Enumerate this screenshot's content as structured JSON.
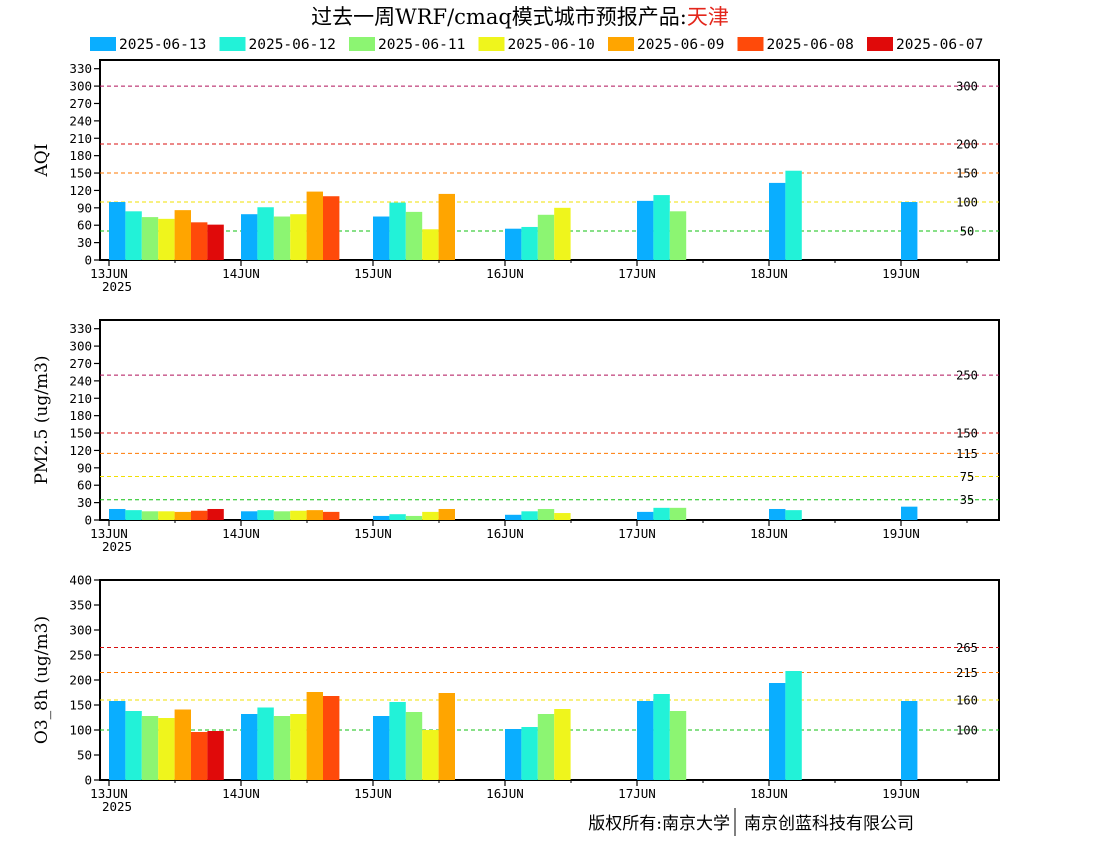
{
  "title": {
    "prefix": "过去一周WRF/cmaq模式城市预报产品:",
    "city": "天津",
    "prefix_color": "#000000",
    "city_color": "#e3261b"
  },
  "legend": {
    "placement": "top",
    "items": [
      {
        "label": "2025-06-13",
        "color": "#0aaeff"
      },
      {
        "label": "2025-06-12",
        "color": "#22f2d8"
      },
      {
        "label": "2025-06-11",
        "color": "#8cf572"
      },
      {
        "label": "2025-06-10",
        "color": "#eff51c"
      },
      {
        "label": "2025-06-09",
        "color": "#ffa500"
      },
      {
        "label": "2025-06-08",
        "color": "#ff4a0a"
      },
      {
        "label": "2025-06-07",
        "color": "#e00a0a"
      }
    ]
  },
  "footer": {
    "left": "版权所有:南京大学",
    "right": "南京创蓝科技有限公司"
  },
  "chart_data": [
    {
      "type": "bar",
      "ylabel": "AQI",
      "ylim": [
        0,
        345
      ],
      "yticks": [
        0,
        30,
        60,
        90,
        120,
        150,
        180,
        210,
        240,
        270,
        300,
        330
      ],
      "x_day_labels": [
        "13JUN",
        "14JUN",
        "15JUN",
        "16JUN",
        "17JUN",
        "18JUN",
        "19JUN"
      ],
      "x_year_label": "2025",
      "grid": false,
      "thresholds": [
        {
          "value": 300,
          "label": "300",
          "color": "#b0105a"
        },
        {
          "value": 200,
          "label": "200",
          "color": "#d81010"
        },
        {
          "value": 150,
          "label": "150",
          "color": "#ff7a00"
        },
        {
          "value": 100,
          "label": "100",
          "color": "#f2e000"
        },
        {
          "value": 50,
          "label": "50",
          "color": "#10c010"
        }
      ],
      "groups": [
        {
          "day": 0,
          "half": 0,
          "values": [
            100,
            84,
            74,
            71,
            86,
            65,
            61
          ]
        },
        {
          "day": 1,
          "half": 0,
          "values": [
            79,
            91,
            75,
            79,
            118,
            110
          ]
        },
        {
          "day": 2,
          "half": 0,
          "values": [
            75,
            99,
            83,
            53,
            114
          ]
        },
        {
          "day": 3,
          "half": 0,
          "values": [
            54,
            57,
            78,
            90
          ]
        },
        {
          "day": 4,
          "half": 0,
          "values": [
            102,
            112,
            84
          ]
        },
        {
          "day": 5,
          "half": 0,
          "values": [
            133,
            154
          ]
        },
        {
          "day": 6,
          "half": 0,
          "values": [
            100
          ]
        }
      ]
    },
    {
      "type": "bar",
      "ylabel": "PM2.5 (ug/m3)",
      "ylim": [
        0,
        345
      ],
      "yticks": [
        0,
        30,
        60,
        90,
        120,
        150,
        180,
        210,
        240,
        270,
        300,
        330
      ],
      "x_day_labels": [
        "13JUN",
        "14JUN",
        "15JUN",
        "16JUN",
        "17JUN",
        "18JUN",
        "19JUN"
      ],
      "x_year_label": "2025",
      "grid": false,
      "thresholds": [
        {
          "value": 250,
          "label": "250",
          "color": "#b0105a"
        },
        {
          "value": 150,
          "label": "150",
          "color": "#d81010"
        },
        {
          "value": 115,
          "label": "115",
          "color": "#ff7a00"
        },
        {
          "value": 75,
          "label": "75",
          "color": "#f2e000"
        },
        {
          "value": 35,
          "label": "35",
          "color": "#10c010"
        }
      ],
      "groups": [
        {
          "day": 0,
          "half": 0,
          "values": [
            19,
            17,
            15,
            15,
            14,
            16,
            19
          ]
        },
        {
          "day": 1,
          "half": 0,
          "values": [
            15,
            17,
            15,
            16,
            17,
            14
          ]
        },
        {
          "day": 2,
          "half": 0,
          "values": [
            7,
            10,
            7,
            14,
            19
          ]
        },
        {
          "day": 3,
          "half": 0,
          "values": [
            9,
            15,
            19,
            12
          ]
        },
        {
          "day": 4,
          "half": 0,
          "values": [
            14,
            21,
            21
          ]
        },
        {
          "day": 5,
          "half": 0,
          "values": [
            19,
            17
          ]
        },
        {
          "day": 6,
          "half": 0,
          "values": [
            23
          ]
        }
      ]
    },
    {
      "type": "bar",
      "ylabel": "O3_8h (ug/m3)",
      "ylim": [
        0,
        400
      ],
      "yticks": [
        0,
        50,
        100,
        150,
        200,
        250,
        300,
        350,
        400
      ],
      "x_day_labels": [
        "13JUN",
        "14JUN",
        "15JUN",
        "16JUN",
        "17JUN",
        "18JUN",
        "19JUN"
      ],
      "x_year_label": "2025",
      "grid": false,
      "thresholds": [
        {
          "value": 265,
          "label": "265",
          "color": "#d81010"
        },
        {
          "value": 215,
          "label": "215",
          "color": "#ff7a00"
        },
        {
          "value": 160,
          "label": "160",
          "color": "#f2e000"
        },
        {
          "value": 100,
          "label": "100",
          "color": "#10c010"
        }
      ],
      "groups": [
        {
          "day": 0,
          "half": 0,
          "values": [
            158,
            138,
            128,
            124,
            141,
            96,
            98
          ]
        },
        {
          "day": 1,
          "half": 0,
          "values": [
            132,
            145,
            128,
            132,
            176,
            168
          ]
        },
        {
          "day": 2,
          "half": 0,
          "values": [
            128,
            156,
            136,
            100,
            174
          ]
        },
        {
          "day": 3,
          "half": 0,
          "values": [
            102,
            106,
            132,
            142
          ]
        },
        {
          "day": 4,
          "half": 0,
          "values": [
            158,
            172,
            138
          ]
        },
        {
          "day": 5,
          "half": 0,
          "values": [
            194,
            218
          ]
        },
        {
          "day": 6,
          "half": 0,
          "values": [
            158
          ]
        }
      ]
    }
  ]
}
